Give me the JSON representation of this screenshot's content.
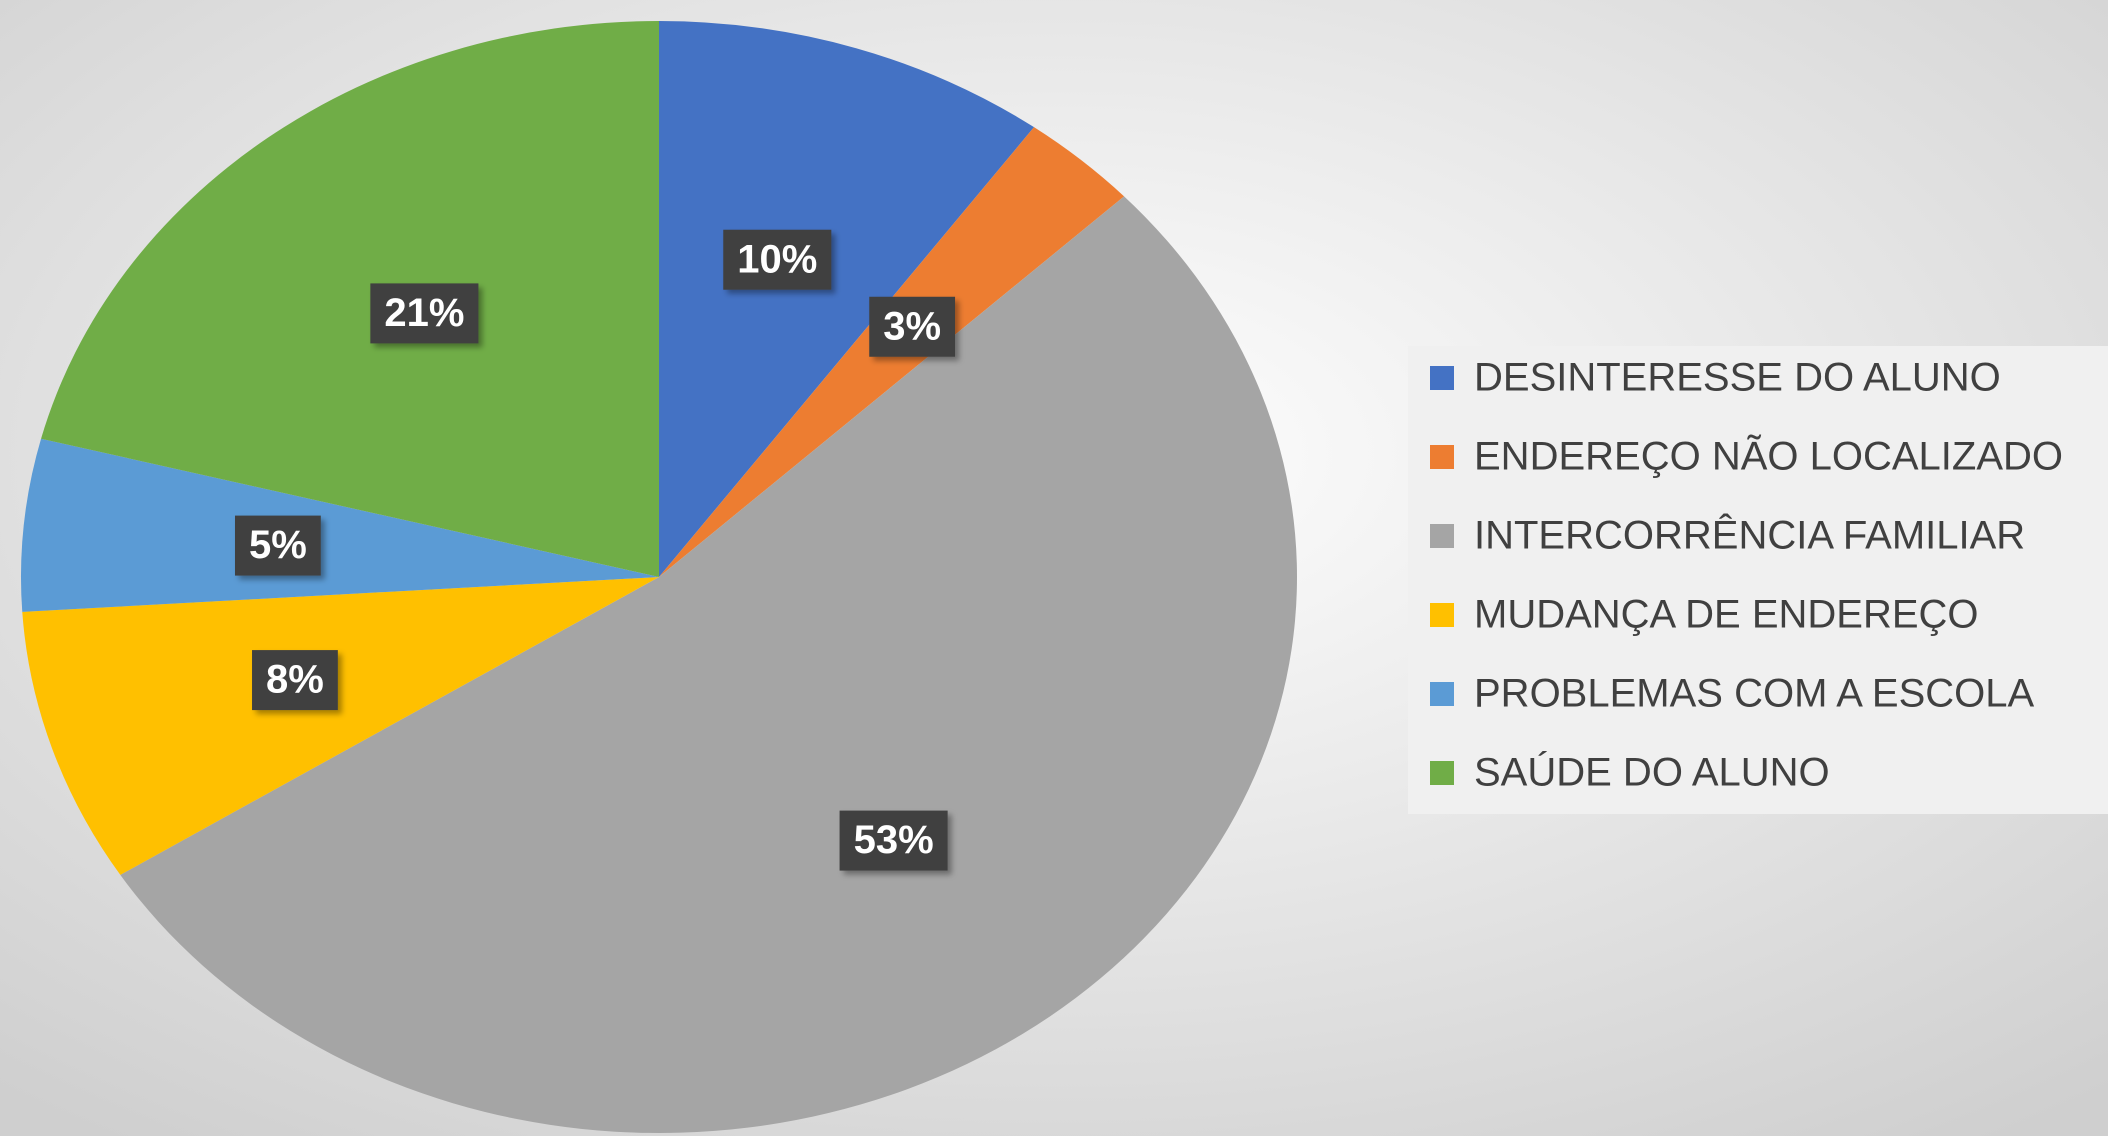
{
  "chart_data": {
    "type": "pie",
    "categories": [
      "DESINTERESSE DO ALUNO",
      "ENDEREÇO NÃO LOCALIZADO",
      "INTERCORRÊNCIA FAMILIAR",
      "MUDANÇA DE ENDEREÇO",
      "PROBLEMAS COM A ESCOLA",
      "SAÚDE DO ALUNO"
    ],
    "values": [
      10,
      3,
      53,
      8,
      5,
      21
    ],
    "value_labels": [
      "10%",
      "3%",
      "53%",
      "8%",
      "5%",
      "21%"
    ],
    "colors": [
      "#4472c4",
      "#ed7d31",
      "#a5a5a5",
      "#ffc000",
      "#5b9bd5",
      "#70ad47"
    ],
    "legend": "right"
  }
}
